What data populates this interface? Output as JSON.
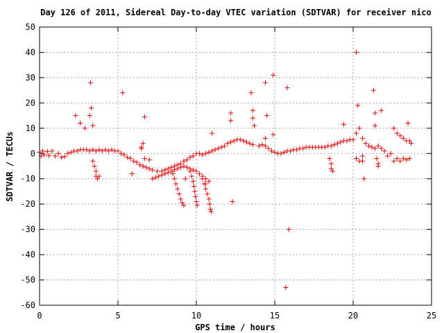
{
  "chart_data": {
    "type": "scatter",
    "title": "Day 126 of 2011, Sidereal Day-to-day VTEC variation (SDTVAR) for receiver nico",
    "xlabel": "GPS time / hours",
    "ylabel": "SDTVAR / TECUs",
    "xlim": [
      0,
      25
    ],
    "ylim": [
      -60,
      50
    ],
    "xticks": [
      0,
      5,
      10,
      15,
      20,
      25
    ],
    "yticks": [
      -60,
      -50,
      -40,
      -30,
      -20,
      -10,
      0,
      10,
      20,
      30,
      40,
      50
    ],
    "grid": true,
    "marker": "+",
    "color": "#e00000",
    "series": [
      {
        "points": [
          [
            0.0,
            0.5
          ],
          [
            0.1,
            -1.0
          ],
          [
            0.2,
            1.0
          ],
          [
            0.3,
            -0.5
          ],
          [
            0.5,
            0.8
          ],
          [
            0.6,
            -0.8
          ],
          [
            0.8,
            1.0
          ],
          [
            1.0,
            -1.0
          ],
          [
            1.2,
            0.0
          ],
          [
            1.4,
            -1.5
          ],
          [
            1.6,
            -1.2
          ],
          [
            1.8,
            0.0
          ],
          [
            2.0,
            0.5
          ],
          [
            2.2,
            1.0
          ],
          [
            2.4,
            1.0
          ],
          [
            2.6,
            1.5
          ],
          [
            2.8,
            1.5
          ],
          [
            3.0,
            1.5
          ],
          [
            3.2,
            1.0
          ],
          [
            3.4,
            1.5
          ],
          [
            3.6,
            1.0
          ],
          [
            3.8,
            1.5
          ],
          [
            4.0,
            1.0
          ],
          [
            4.2,
            1.5
          ],
          [
            4.4,
            1.0
          ],
          [
            4.6,
            1.5
          ],
          [
            4.8,
            1.0
          ],
          [
            5.0,
            1.0
          ],
          [
            5.2,
            0.0
          ],
          [
            5.4,
            -0.5
          ],
          [
            5.6,
            -1.5
          ],
          [
            5.8,
            -2.0
          ],
          [
            6.0,
            -3.0
          ],
          [
            6.2,
            -3.5
          ],
          [
            6.4,
            -4.5
          ],
          [
            6.6,
            -5.0
          ],
          [
            6.8,
            -5.5
          ],
          [
            7.0,
            -6.0
          ],
          [
            7.2,
            -6.5
          ],
          [
            7.5,
            -7.0
          ],
          [
            7.8,
            -7.0
          ],
          [
            8.0,
            -6.5
          ],
          [
            8.2,
            -6.0
          ],
          [
            8.4,
            -5.5
          ],
          [
            8.6,
            -5.0
          ],
          [
            8.8,
            -4.5
          ],
          [
            9.0,
            -4.0
          ],
          [
            9.2,
            -3.0
          ],
          [
            9.4,
            -2.5
          ],
          [
            9.6,
            -1.5
          ],
          [
            9.8,
            -1.0
          ],
          [
            10.0,
            0.0
          ],
          [
            10.2,
            0.0
          ],
          [
            10.4,
            -0.5
          ],
          [
            10.6,
            0.0
          ],
          [
            10.8,
            0.5
          ],
          [
            11.0,
            1.0
          ],
          [
            11.2,
            1.5
          ],
          [
            11.4,
            2.0
          ],
          [
            11.6,
            2.5
          ],
          [
            11.8,
            3.0
          ],
          [
            12.0,
            4.0
          ],
          [
            12.2,
            4.5
          ],
          [
            12.4,
            5.0
          ],
          [
            12.6,
            5.5
          ],
          [
            12.8,
            5.5
          ],
          [
            13.0,
            5.0
          ],
          [
            13.2,
            4.5
          ],
          [
            13.4,
            4.0
          ],
          [
            13.6,
            3.5
          ],
          [
            7.2,
            -10.0
          ],
          [
            7.4,
            -9.5
          ],
          [
            7.6,
            -9.0
          ],
          [
            7.8,
            -8.5
          ],
          [
            8.0,
            -8.0
          ],
          [
            8.2,
            -7.5
          ],
          [
            8.4,
            -7.0
          ],
          [
            8.6,
            -6.5
          ],
          [
            8.8,
            -6.0
          ],
          [
            9.0,
            -5.5
          ],
          [
            9.2,
            -5.0
          ],
          [
            9.4,
            -5.5
          ],
          [
            9.6,
            -6.0
          ],
          [
            9.8,
            -6.5
          ],
          [
            10.0,
            -7.0
          ],
          [
            10.2,
            -8.0
          ],
          [
            10.4,
            -9.0
          ],
          [
            10.6,
            -10.0
          ],
          [
            10.8,
            -11.0
          ],
          [
            8.5,
            -8.0
          ],
          [
            8.6,
            -10.0
          ],
          [
            8.7,
            -12.0
          ],
          [
            8.8,
            -14.0
          ],
          [
            8.9,
            -16.0
          ],
          [
            9.0,
            -18.0
          ],
          [
            9.1,
            -19.5
          ],
          [
            9.2,
            -20.5
          ],
          [
            9.6,
            -7.0
          ],
          [
            9.7,
            -9.0
          ],
          [
            9.8,
            -11.0
          ],
          [
            9.85,
            -13.0
          ],
          [
            9.9,
            -15.0
          ],
          [
            9.95,
            -17.0
          ],
          [
            10.0,
            -19.0
          ],
          [
            10.05,
            -20.5
          ],
          [
            10.4,
            -10.0
          ],
          [
            10.5,
            -12.0
          ],
          [
            10.6,
            -14.0
          ],
          [
            10.7,
            -16.0
          ],
          [
            10.8,
            -18.0
          ],
          [
            10.85,
            -20.0
          ],
          [
            10.9,
            -22.0
          ],
          [
            10.95,
            -23.0
          ],
          [
            14.0,
            3.0
          ],
          [
            14.2,
            3.5
          ],
          [
            14.4,
            3.0
          ],
          [
            14.6,
            2.0
          ],
          [
            14.8,
            1.0
          ],
          [
            15.0,
            0.5
          ],
          [
            15.2,
            0.0
          ],
          [
            15.4,
            0.0
          ],
          [
            15.6,
            0.5
          ],
          [
            15.8,
            1.0
          ],
          [
            16.0,
            1.0
          ],
          [
            16.2,
            1.5
          ],
          [
            16.4,
            1.5
          ],
          [
            16.6,
            2.0
          ],
          [
            16.8,
            2.0
          ],
          [
            17.0,
            2.5
          ],
          [
            17.2,
            2.5
          ],
          [
            17.4,
            2.5
          ],
          [
            17.6,
            2.5
          ],
          [
            17.8,
            2.5
          ],
          [
            18.0,
            2.5
          ],
          [
            18.2,
            2.5
          ],
          [
            18.4,
            3.0
          ],
          [
            18.6,
            3.0
          ],
          [
            18.8,
            3.5
          ],
          [
            19.0,
            4.0
          ],
          [
            19.2,
            4.5
          ],
          [
            19.4,
            5.0
          ],
          [
            19.6,
            5.0
          ],
          [
            19.8,
            5.5
          ],
          [
            20.0,
            5.5
          ],
          [
            20.2,
            8.0
          ],
          [
            20.2,
            -2.0
          ],
          [
            20.4,
            10.0
          ],
          [
            20.4,
            -3.0
          ],
          [
            20.6,
            6.0
          ],
          [
            20.6,
            -1.0
          ],
          [
            20.8,
            4.0
          ],
          [
            21.0,
            3.0
          ],
          [
            21.2,
            2.5
          ],
          [
            21.4,
            2.0
          ],
          [
            21.6,
            3.0
          ],
          [
            21.8,
            2.0
          ],
          [
            22.0,
            1.0
          ],
          [
            22.2,
            -1.0
          ],
          [
            22.4,
            0.0
          ],
          [
            22.6,
            10.0
          ],
          [
            22.6,
            -3.0
          ],
          [
            22.8,
            8.0
          ],
          [
            22.8,
            -2.0
          ],
          [
            23.0,
            7.0
          ],
          [
            23.0,
            -3.0
          ],
          [
            23.2,
            6.0
          ],
          [
            23.2,
            -2.0
          ],
          [
            23.4,
            5.0
          ],
          [
            23.4,
            -2.5
          ],
          [
            23.6,
            5.0
          ],
          [
            23.6,
            -2.0
          ],
          [
            23.7,
            4.0
          ],
          [
            3.4,
            -3.0
          ],
          [
            3.5,
            -5.0
          ],
          [
            3.6,
            -7.0
          ],
          [
            3.6,
            -9.0
          ],
          [
            3.7,
            -10.0
          ],
          [
            18.5,
            -2.0
          ],
          [
            18.6,
            -4.0
          ],
          [
            18.6,
            -6.0
          ],
          [
            18.7,
            -7.0
          ],
          [
            21.5,
            -2.0
          ],
          [
            21.6,
            -4.0
          ],
          [
            21.6,
            -5.0
          ],
          [
            6.5,
            2.0
          ],
          [
            6.6,
            4.0
          ],
          [
            6.7,
            -2.0
          ],
          [
            2.3,
            15.0
          ],
          [
            2.6,
            12.0
          ],
          [
            2.9,
            10.0
          ],
          [
            3.2,
            15.0
          ],
          [
            3.3,
            18.0
          ],
          [
            3.25,
            28.0
          ],
          [
            3.4,
            11.0
          ],
          [
            3.8,
            -9.0
          ],
          [
            5.3,
            24.0
          ],
          [
            5.9,
            -8.0
          ],
          [
            6.5,
            2.5
          ],
          [
            6.7,
            14.5
          ],
          [
            7.0,
            -2.5
          ],
          [
            9.3,
            -10.0
          ],
          [
            10.6,
            -12.0
          ],
          [
            11.0,
            8.0
          ],
          [
            12.2,
            16.0
          ],
          [
            12.2,
            13.0
          ],
          [
            12.3,
            -19.0
          ],
          [
            13.5,
            24.0
          ],
          [
            13.6,
            17.0
          ],
          [
            13.6,
            14.0
          ],
          [
            13.7,
            11.0
          ],
          [
            14.4,
            28.0
          ],
          [
            14.5,
            15.0
          ],
          [
            14.4,
            6.0
          ],
          [
            14.9,
            31.0
          ],
          [
            14.9,
            7.5
          ],
          [
            15.8,
            26.0
          ],
          [
            15.9,
            -30.0
          ],
          [
            15.7,
            -53.0
          ],
          [
            19.4,
            11.5
          ],
          [
            20.2,
            40.0
          ],
          [
            20.3,
            19.0
          ],
          [
            20.6,
            -3.0
          ],
          [
            20.7,
            -10.0
          ],
          [
            21.3,
            25.0
          ],
          [
            21.4,
            16.0
          ],
          [
            21.4,
            11.0
          ],
          [
            21.8,
            17.0
          ],
          [
            23.5,
            12.0
          ]
        ]
      }
    ]
  }
}
